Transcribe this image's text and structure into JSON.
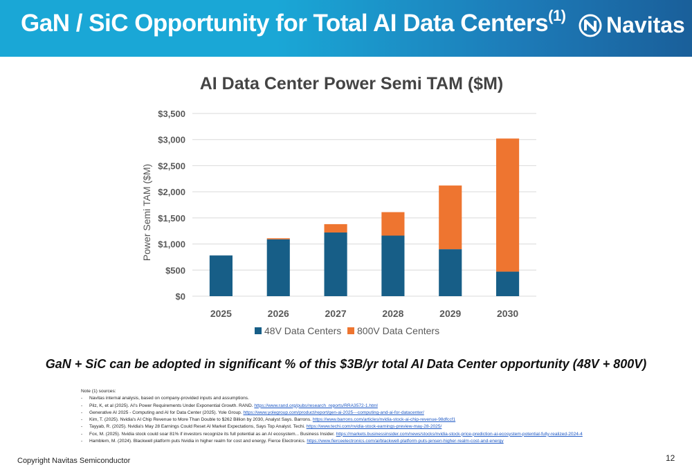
{
  "header": {
    "title": "GaN / SiC Opportunity for Total AI Data Centers",
    "title_sup": "(1)",
    "logo_text": "Navitas",
    "colors": {
      "band_start": "#1aa7d6",
      "band_end": "#1a5f9a"
    }
  },
  "chart_data": {
    "type": "bar",
    "stacked": true,
    "title": "AI Data Center Power Semi TAM ($M)",
    "xlabel": "",
    "ylabel": "Power Semi TAM ($M)",
    "categories": [
      "2025",
      "2026",
      "2027",
      "2028",
      "2029",
      "2030"
    ],
    "series": [
      {
        "name": "48V Data Centers",
        "color": "#175e87",
        "values": [
          780,
          1090,
          1220,
          1160,
          900,
          470
        ]
      },
      {
        "name": "800V Data Centers",
        "color": "#ee7530",
        "values": [
          0,
          20,
          160,
          450,
          1220,
          2550
        ]
      }
    ],
    "ylim": [
      0,
      3500
    ],
    "yticks": [
      "$0",
      "$500",
      "$1,000",
      "$1,500",
      "$2,000",
      "$2,500",
      "$3,000",
      "$3,500"
    ],
    "grid": true,
    "legend": "bottom"
  },
  "tagline": "GaN + SiC can be adopted in significant % of this $3B/yr total AI Data Center opportunity (48V + 800V)",
  "notes": {
    "heading": "Note (1) sources:",
    "items": [
      {
        "text": "Navitas internal analysis, based on company-provided inputs and assumptions.",
        "link": ""
      },
      {
        "text": "Pilz, K, et al (2025). AI's Power Requirements Under Exponential Growth. RAND.",
        "link": "https://www.rand.org/pubs/research_reports/RRA3572-1.html"
      },
      {
        "text": "Generative AI 2025 - Computing and AI for Data Center (2025). Yole Group.",
        "link": "https://www.yolegroup.com/product/report/gen-ai-2025---computing-and-ai-for-datacenter/"
      },
      {
        "text": "Kim, T. (2025). Nvidia's AI Chip Revenue to More Than Double to $262 Billion by 2030, Analyst Says. Barrons.",
        "link": "https://www.barrons.com/articles/nvidia-stock-ai-chip-revenue-98dfccf1"
      },
      {
        "text": "Tayyab, R. (2025). Nvidia's May 28 Earnings Could Reset AI Market Expectations, Says Top Analyst. Techi.",
        "link": "https://www.techi.com/nvidia-stock-earnings-preview-may-28-2025/"
      },
      {
        "text": "Fox, M. (2025). Nvidia stock could soar 81% if investors recognize its full potential as an AI ecosystem... Business Insider.",
        "link": "https://markets.businessinsider.com/news/stocks/nvidia-stock-price-prediction-ai-ecosystem-potential-fully-realized-2024-4"
      },
      {
        "text": "Hamblem, M. (2024). Blackwell platform puts Nvidia in higher realm for cost and energy. Fierce Electronics.",
        "link": "https://www.fierceelectronics.com/ai/blackwell-platform-puts-jensen-higher-realm-cost-and-energy"
      }
    ]
  },
  "footer": {
    "copyright": "Copyright Navitas Semiconductor",
    "page_number": "12"
  }
}
